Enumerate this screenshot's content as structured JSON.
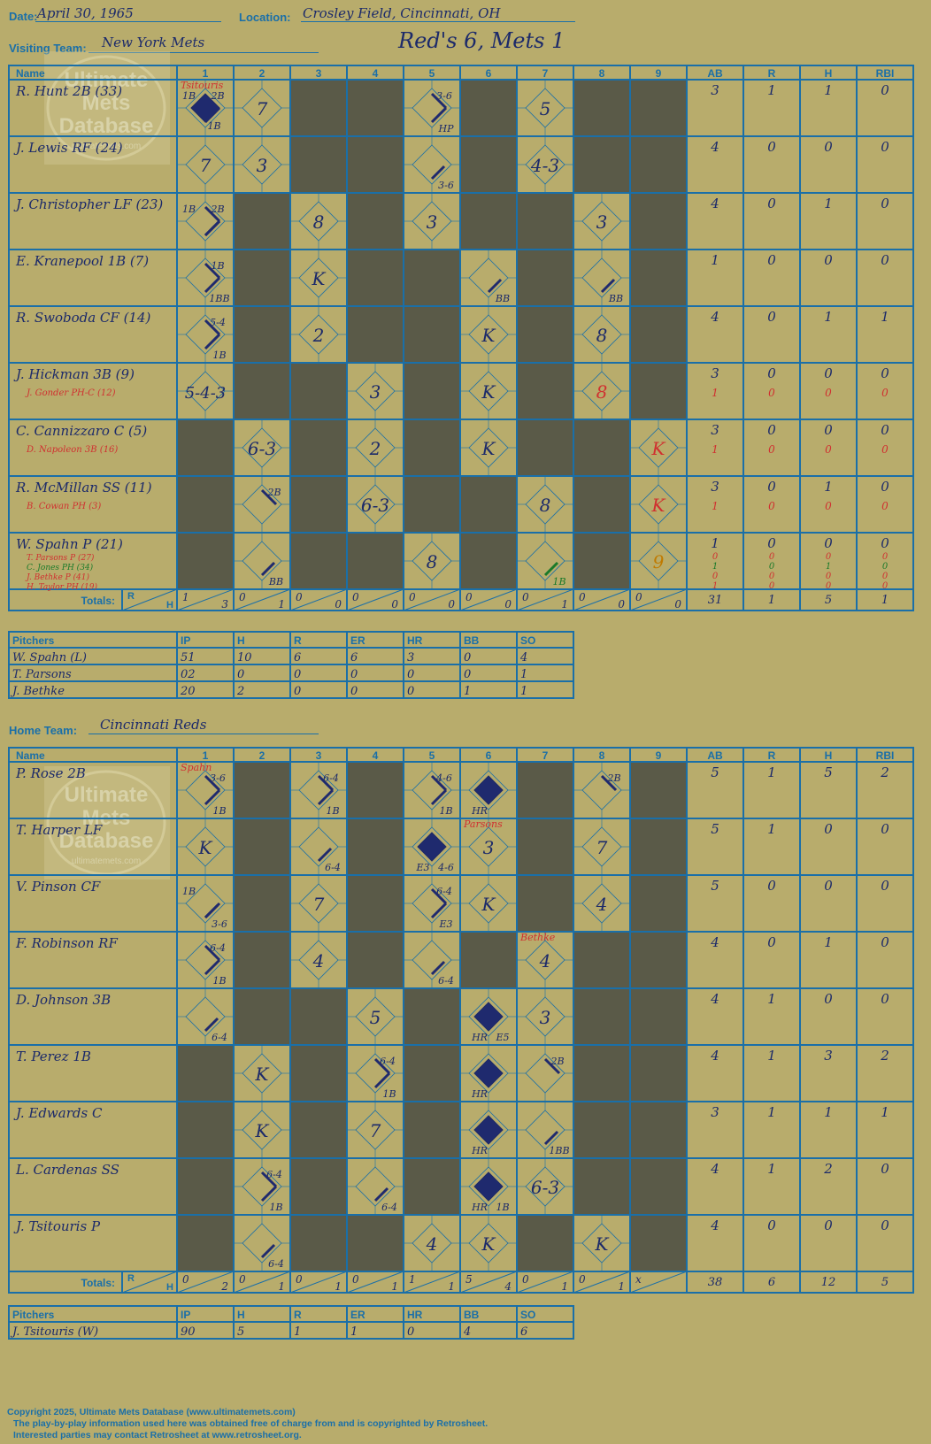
{
  "header": {
    "date_label": "Date:",
    "date": "April 30, 1965",
    "location_label": "Location:",
    "location": "Crosley Field, Cincinnati, OH",
    "visiting_label": "Visiting Team:",
    "visiting_team": "New York Mets",
    "home_label": "Home Team:",
    "home_team": "Cincinnati Reds",
    "result": "Red's 6, Mets 1"
  },
  "grid_headers": [
    "Name",
    "1",
    "2",
    "3",
    "4",
    "5",
    "6",
    "7",
    "8",
    "9",
    "AB",
    "R",
    "H",
    "RBI"
  ],
  "totals_label": "Totals:",
  "totals_r": "R",
  "totals_h": "H",
  "pitch_headers": [
    "Pitchers",
    "IP",
    "H",
    "R",
    "ER",
    "HR",
    "BB",
    "SO"
  ],
  "watermark": [
    "Ultimate",
    "Mets",
    "Database",
    "ultimatemets.com"
  ],
  "visitors": {
    "batters": [
      {
        "name": "R. Hunt 2B (33)",
        "subs": [],
        "stats": [
          [
            "3",
            "1",
            "1",
            "0"
          ]
        ],
        "cells": [
          {
            "inn": 1,
            "text": "",
            "adv": "2B",
            "b1": "1B",
            "b2": "1B",
            "run": true,
            "note": "Tsitouris"
          },
          {
            "inn": 2,
            "text": "7"
          },
          {
            "inn": 5,
            "text": "",
            "adv": "3-6",
            "bot": "HP"
          },
          {
            "inn": 7,
            "text": "5"
          }
        ]
      },
      {
        "name": "J. Lewis RF (24)",
        "subs": [],
        "stats": [
          [
            "4",
            "0",
            "0",
            "0"
          ]
        ],
        "cells": [
          {
            "inn": 1,
            "text": "7"
          },
          {
            "inn": 2,
            "text": "3"
          },
          {
            "inn": 5,
            "text": "",
            "bot": "3-6"
          },
          {
            "inn": 7,
            "text": "4-3"
          }
        ]
      },
      {
        "name": "J. Christopher LF (23)",
        "subs": [],
        "stats": [
          [
            "4",
            "0",
            "1",
            "0"
          ]
        ],
        "cells": [
          {
            "inn": 1,
            "text": "",
            "b1": "1B",
            "adv": "2B"
          },
          {
            "inn": 3,
            "text": "8"
          },
          {
            "inn": 5,
            "text": "3"
          },
          {
            "inn": 8,
            "text": "3"
          }
        ]
      },
      {
        "name": "E. Kranepool 1B (7)",
        "subs": [],
        "stats": [
          [
            "1",
            "0",
            "0",
            "0"
          ]
        ],
        "cells": [
          {
            "inn": 1,
            "text": "",
            "adv": "1B",
            "bot": "1BB"
          },
          {
            "inn": 3,
            "text": "K"
          },
          {
            "inn": 6,
            "text": "",
            "bot": "BB"
          },
          {
            "inn": 8,
            "text": "",
            "bot": "BB"
          }
        ]
      },
      {
        "name": "R. Swoboda CF (14)",
        "subs": [],
        "stats": [
          [
            "4",
            "0",
            "1",
            "1"
          ]
        ],
        "cells": [
          {
            "inn": 1,
            "text": "",
            "adv": "5-4",
            "bot": "1B"
          },
          {
            "inn": 3,
            "text": "2"
          },
          {
            "inn": 6,
            "text": "K"
          },
          {
            "inn": 8,
            "text": "8"
          }
        ]
      },
      {
        "name": "J. Hickman 3B (9)",
        "subs": [
          "J. Gonder PH-C (12)"
        ],
        "stats": [
          [
            "3",
            "0",
            "0",
            "0"
          ],
          [
            "1",
            "0",
            "0",
            "0"
          ]
        ],
        "cells": [
          {
            "inn": 1,
            "text": "5-4-3"
          },
          {
            "inn": 4,
            "text": "3"
          },
          {
            "inn": 6,
            "text": "K"
          },
          {
            "inn": 8,
            "text": "8",
            "red": true
          }
        ]
      },
      {
        "name": "C. Cannizzaro C (5)",
        "subs": [
          "D. Napoleon 3B (16)"
        ],
        "stats": [
          [
            "3",
            "0",
            "0",
            "0"
          ],
          [
            "1",
            "0",
            "0",
            "0"
          ]
        ],
        "cells": [
          {
            "inn": 2,
            "text": "6-3"
          },
          {
            "inn": 4,
            "text": "2"
          },
          {
            "inn": 6,
            "text": "K"
          },
          {
            "inn": 9,
            "text": "K",
            "red": true
          }
        ]
      },
      {
        "name": "R. McMillan SS (11)",
        "subs": [
          "B. Cowan PH (3)"
        ],
        "stats": [
          [
            "3",
            "0",
            "1",
            "0"
          ],
          [
            "1",
            "0",
            "0",
            "0"
          ]
        ],
        "cells": [
          {
            "inn": 2,
            "text": "",
            "adv": "2B"
          },
          {
            "inn": 4,
            "text": "6-3"
          },
          {
            "inn": 7,
            "text": "8"
          },
          {
            "inn": 9,
            "text": "K",
            "red": true
          }
        ]
      },
      {
        "name": "W. Spahn P (21)",
        "subs": [
          "T. Parsons P (27)",
          "C. Jones PH (34)",
          "J. Bethke P (41)",
          "H. Taylor PH (19)"
        ],
        "stats": [
          [
            "1",
            "0",
            "0",
            "0"
          ],
          [
            "0",
            "0",
            "0",
            "0"
          ],
          [
            "1",
            "0",
            "1",
            "0"
          ],
          [
            "0",
            "0",
            "0",
            "0"
          ],
          [
            "1",
            "0",
            "0",
            "0"
          ]
        ],
        "cells": [
          {
            "inn": 2,
            "text": "",
            "bot": "BB"
          },
          {
            "inn": 5,
            "text": "8"
          },
          {
            "inn": 7,
            "text": "",
            "bot": "1B",
            "green": true
          },
          {
            "inn": 9,
            "text": "9",
            "orange": true
          }
        ]
      }
    ],
    "shade": [
      [
        3,
        4,
        6,
        8,
        9
      ],
      [
        3,
        4,
        6,
        8,
        9
      ],
      [
        2,
        4,
        6,
        7,
        9
      ],
      [
        2,
        4,
        5,
        7,
        9
      ],
      [
        2,
        4,
        5,
        7,
        9
      ],
      [
        2,
        3,
        5,
        7,
        9
      ],
      [
        1,
        3,
        5,
        7,
        8
      ],
      [
        1,
        3,
        5,
        6,
        8
      ],
      [
        1,
        3,
        4,
        6,
        8
      ]
    ],
    "inning_totals": [
      [
        "1",
        "3"
      ],
      [
        "0",
        "1"
      ],
      [
        "0",
        "0"
      ],
      [
        "0",
        "0"
      ],
      [
        "0",
        "0"
      ],
      [
        "0",
        "0"
      ],
      [
        "0",
        "1"
      ],
      [
        "0",
        "0"
      ],
      [
        "0",
        "0"
      ]
    ],
    "totals": [
      "31",
      "1",
      "5",
      "1"
    ],
    "pitchers": [
      [
        "W. Spahn (L)",
        "51",
        "10",
        "6",
        "6",
        "3",
        "0",
        "4"
      ],
      [
        "T. Parsons",
        "02",
        "0",
        "0",
        "0",
        "0",
        "0",
        "1"
      ],
      [
        "J. Bethke",
        "20",
        "2",
        "0",
        "0",
        "0",
        "1",
        "1"
      ]
    ]
  },
  "home": {
    "batters": [
      {
        "name": "P. Rose 2B",
        "subs": [],
        "stats": [
          [
            "5",
            "1",
            "5",
            "2"
          ]
        ],
        "cells": [
          {
            "inn": 1,
            "text": "",
            "adv": "3-6",
            "bot": "1B",
            "note": "Spahn"
          },
          {
            "inn": 3,
            "text": "",
            "adv": "6-4",
            "bot": "1B"
          },
          {
            "inn": 5,
            "text": "",
            "adv": "4-6",
            "bot": "1B"
          },
          {
            "inn": 6,
            "text": "",
            "run": true,
            "bl": "HR"
          },
          {
            "inn": 8,
            "text": "",
            "adv": "2B"
          }
        ]
      },
      {
        "name": "T. Harper LF",
        "subs": [],
        "stats": [
          [
            "5",
            "1",
            "0",
            "0"
          ]
        ],
        "cells": [
          {
            "inn": 1,
            "text": "K"
          },
          {
            "inn": 3,
            "text": "",
            "bot": "6-4"
          },
          {
            "inn": 5,
            "text": "",
            "run": true,
            "bl": "E3",
            "bot": "4-6"
          },
          {
            "inn": 6,
            "text": "3",
            "note": "Parsons"
          },
          {
            "inn": 8,
            "text": "7"
          }
        ]
      },
      {
        "name": "V. Pinson CF",
        "subs": [],
        "stats": [
          [
            "5",
            "0",
            "0",
            "0"
          ]
        ],
        "cells": [
          {
            "inn": 1,
            "text": "",
            "b1": "1B",
            "bot": "3-6"
          },
          {
            "inn": 3,
            "text": "7"
          },
          {
            "inn": 5,
            "text": "",
            "adv": "6-4",
            "bot": "E3"
          },
          {
            "inn": 6,
            "text": "K"
          },
          {
            "inn": 8,
            "text": "4"
          }
        ]
      },
      {
        "name": "F. Robinson RF",
        "subs": [],
        "stats": [
          [
            "4",
            "0",
            "1",
            "0"
          ]
        ],
        "cells": [
          {
            "inn": 1,
            "text": "",
            "adv": "6-4",
            "bot": "1B"
          },
          {
            "inn": 3,
            "text": "4"
          },
          {
            "inn": 5,
            "text": "",
            "bot": "6-4"
          },
          {
            "inn": 7,
            "text": "4",
            "note": "Bethke"
          }
        ]
      },
      {
        "name": "D. Johnson 3B",
        "subs": [],
        "stats": [
          [
            "4",
            "1",
            "0",
            "0"
          ]
        ],
        "cells": [
          {
            "inn": 1,
            "text": "",
            "bot": "6-4"
          },
          {
            "inn": 4,
            "text": "5"
          },
          {
            "inn": 6,
            "text": "",
            "run": true,
            "bl": "HR",
            "bot": "E5"
          },
          {
            "inn": 7,
            "text": "3"
          }
        ]
      },
      {
        "name": "T. Perez 1B",
        "subs": [],
        "stats": [
          [
            "4",
            "1",
            "3",
            "2"
          ]
        ],
        "cells": [
          {
            "inn": 2,
            "text": "K"
          },
          {
            "inn": 4,
            "text": "",
            "adv": "6-4",
            "bot": "1B"
          },
          {
            "inn": 6,
            "text": "",
            "run": true,
            "bl": "HR"
          },
          {
            "inn": 7,
            "text": "",
            "adv": "2B"
          }
        ]
      },
      {
        "name": "J. Edwards C",
        "subs": [],
        "stats": [
          [
            "3",
            "1",
            "1",
            "1"
          ]
        ],
        "cells": [
          {
            "inn": 2,
            "text": "K"
          },
          {
            "inn": 4,
            "text": "7"
          },
          {
            "inn": 6,
            "text": "",
            "run": true,
            "bl": "HR"
          },
          {
            "inn": 7,
            "text": "",
            "bot": "1BB"
          }
        ]
      },
      {
        "name": "L. Cardenas SS",
        "subs": [],
        "stats": [
          [
            "4",
            "1",
            "2",
            "0"
          ]
        ],
        "cells": [
          {
            "inn": 2,
            "text": "",
            "adv": "6-4",
            "bot": "1B"
          },
          {
            "inn": 4,
            "text": "",
            "bot": "6-4"
          },
          {
            "inn": 6,
            "text": "",
            "run": true,
            "bl": "HR",
            "bot": "1B"
          },
          {
            "inn": 7,
            "text": "6-3"
          }
        ]
      },
      {
        "name": "J. Tsitouris P",
        "subs": [],
        "stats": [
          [
            "4",
            "0",
            "0",
            "0"
          ]
        ],
        "cells": [
          {
            "inn": 2,
            "text": "",
            "bot": "6-4"
          },
          {
            "inn": 5,
            "text": "4"
          },
          {
            "inn": 6,
            "text": "K"
          },
          {
            "inn": 8,
            "text": "K"
          }
        ]
      }
    ],
    "shade": [
      [
        2,
        4,
        7,
        9
      ],
      [
        2,
        4,
        7,
        9
      ],
      [
        2,
        4,
        7,
        9
      ],
      [
        2,
        4,
        6,
        8,
        9
      ],
      [
        2,
        3,
        5,
        8,
        9
      ],
      [
        1,
        3,
        5,
        8,
        9
      ],
      [
        1,
        3,
        5,
        8,
        9
      ],
      [
        1,
        3,
        5,
        8,
        9
      ],
      [
        1,
        3,
        4,
        7,
        9
      ]
    ],
    "inning_totals": [
      [
        "0",
        "2"
      ],
      [
        "0",
        "1"
      ],
      [
        "0",
        "1"
      ],
      [
        "0",
        "1"
      ],
      [
        "1",
        "1"
      ],
      [
        "5",
        "4"
      ],
      [
        "0",
        "1"
      ],
      [
        "0",
        "1"
      ],
      [
        "x",
        ""
      ]
    ],
    "totals": [
      "38",
      "6",
      "12",
      "5"
    ],
    "pitchers": [
      [
        "J. Tsitouris (W)",
        "90",
        "5",
        "1",
        "1",
        "0",
        "4",
        "6"
      ]
    ]
  },
  "copyright": [
    "Copyright 2025, Ultimate Mets Database (www.ultimatemets.com)",
    "The play-by-play information used here was obtained free of charge from and is copyrighted by Retrosheet.",
    "Interested parties may contact Retrosheet at www.retrosheet.org."
  ],
  "colors": {
    "background": "#b8ac6c",
    "grid": "#1a6fa8",
    "shade": "#5a5a48",
    "ink": "#1c2a6a",
    "red": "#d03030",
    "runner": "#1f2a6e",
    "green": "#1a7a2a",
    "orange": "#c07a00"
  }
}
